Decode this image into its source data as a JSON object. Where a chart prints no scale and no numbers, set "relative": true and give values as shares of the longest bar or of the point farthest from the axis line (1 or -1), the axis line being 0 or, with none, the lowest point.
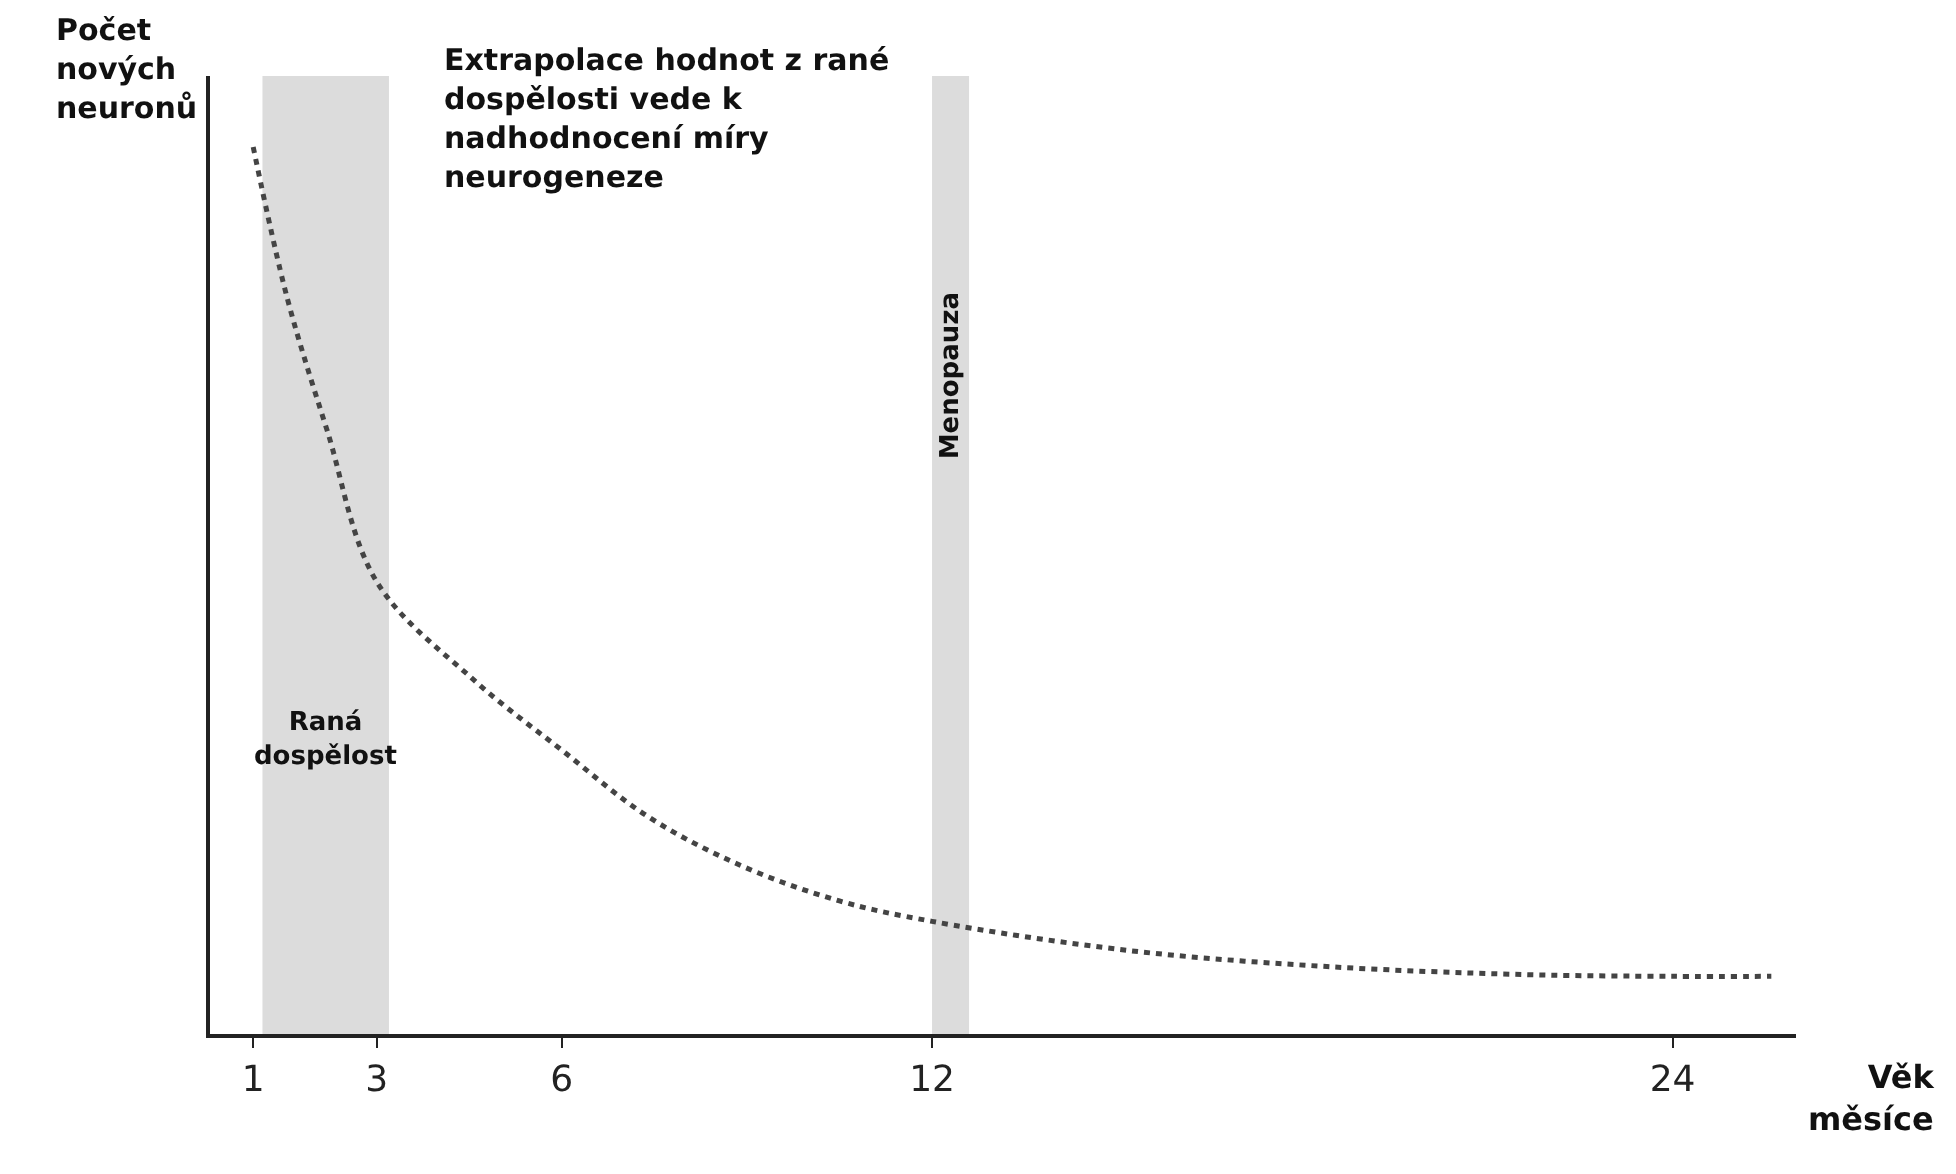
{
  "chart_data": {
    "type": "line",
    "relative": true,
    "ylabel": "Počet nových neuronů",
    "xlabel": "Věk měsíce",
    "x": [
      1,
      1.55,
      2.2,
      3,
      4.56,
      6,
      7.4,
      8.9,
      10.5,
      12,
      15.2,
      18.4,
      21.6,
      24,
      25.6
    ],
    "series": [
      {
        "color": "#444444",
        "values": [
          1.0,
          0.83,
          0.68,
          0.51,
          0.4,
          0.32,
          0.245,
          0.19,
          0.15,
          0.127,
          0.094,
          0.076,
          0.067,
          0.065,
          0.065
        ]
      }
    ],
    "xlim": [
      0.3,
      26.0
    ],
    "xticks": [
      1,
      3,
      6,
      12,
      24
    ],
    "tick_labels": "x",
    "line_style": "dotted",
    "marker": "none",
    "bands": [
      {
        "axis": "x",
        "from": 1.15,
        "to": 3.2,
        "label": "Raná dospělost",
        "color": "#dcdcdc"
      },
      {
        "axis": "x",
        "from": 12.0,
        "to": 12.6,
        "label": "Menopauza",
        "color": "#dcdcdc"
      }
    ],
    "annotations": [
      "Extrapolace hodnot z rané dospělosti vede k nadhodnocení míry neurogeneze"
    ]
  }
}
